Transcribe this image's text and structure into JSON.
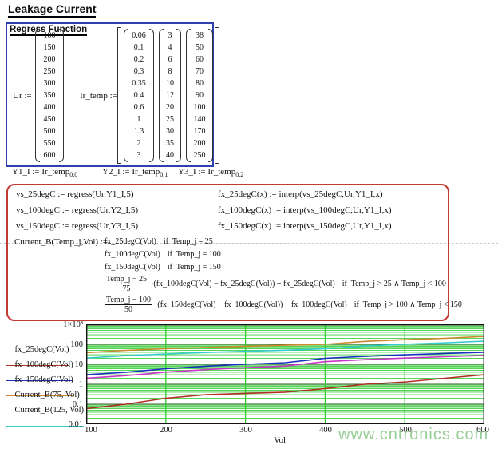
{
  "title": "Leakage Current",
  "regress_box": {
    "title": "Regress Function",
    "ur": {
      "label": "Ur :=",
      "values": [
        "100",
        "150",
        "200",
        "250",
        "300",
        "350",
        "400",
        "450",
        "500",
        "550",
        "600"
      ]
    },
    "ir": {
      "label": "Ir_temp :=",
      "columns": [
        [
          "0.06",
          "0.1",
          "0.2",
          "0.3",
          "0.35",
          "0.4",
          "0.6",
          "1",
          "1.3",
          "2",
          "3"
        ],
        [
          "3",
          "4",
          "6",
          "8",
          "10",
          "12",
          "20",
          "25",
          "30",
          "35",
          "40"
        ],
        [
          "38",
          "50",
          "60",
          "70",
          "80",
          "90",
          "100",
          "140",
          "170",
          "200",
          "250"
        ]
      ]
    }
  },
  "column_assignments": [
    {
      "text": "Y1_I := Ir_temp",
      "subscript": "0,0"
    },
    {
      "text": "Y2_I := Ir_temp",
      "subscript": "0,1"
    },
    {
      "text": "Y3_I := Ir_temp",
      "subscript": "0,2"
    }
  ],
  "formula_box": {
    "regress": [
      "vs_25degC := regress(Ur,Y1_I,5)",
      "vs_100degC := regress(Ur,Y2_I,5)",
      "vs_150degC := regress(Ur,Y3_I,5)"
    ],
    "interp": [
      "fx_25degC(x) := interp(vs_25degC,Ur,Y1_I,x)",
      "fx_100degC(x) := interp(vs_100degC,Ur,Y1_I,x)",
      "fx_150degC(x) := interp(vs_150degC,Ur,Y1_I,x)"
    ],
    "current_b": {
      "lhs": "Current_B(Temp_j,Vol) :=",
      "cases": [
        {
          "expr": "fx_25degC(Vol)",
          "cond": "if  Temp_j = 25"
        },
        {
          "expr": "fx_100degC(Vol)",
          "cond": "if  Temp_j = 100"
        },
        {
          "expr": "fx_150degC(Vol)",
          "cond": "if  Temp_j = 150"
        },
        {
          "frac_num": "Temp_j − 25",
          "frac_den": "75",
          "expr": "·(fx_100degC(Vol) − fx_25degC(Vol)) + fx_25degC(Vol)",
          "cond": "if  Temp_j > 25 ∧ Temp_j < 100"
        },
        {
          "frac_num": "Temp_j − 100",
          "frac_den": "50",
          "expr": "·(fx_150degC(Vol) − fx_100degC(Vol)) + fx_100degC(Vol)",
          "cond": "if  Temp_j > 100 ∧ Temp_j < 150"
        }
      ]
    }
  },
  "chart_data": {
    "type": "line",
    "title": "",
    "xlabel": "Vol",
    "ylabel": "",
    "xlim": [
      100,
      600
    ],
    "ylim_log": [
      0.01,
      1000
    ],
    "x_ticks": [
      "100",
      "200",
      "300",
      "400",
      "500",
      "600"
    ],
    "y_ticks": [
      "1×10³",
      "100",
      "10",
      "1",
      "0.1",
      "0.01"
    ],
    "grid": true,
    "legend_position": "left",
    "x": [
      100,
      150,
      200,
      250,
      300,
      350,
      400,
      450,
      500,
      550,
      600
    ],
    "series": [
      {
        "name": "fx_25degC(Vol)",
        "color": "#b03024",
        "values": [
          0.06,
          0.1,
          0.2,
          0.3,
          0.35,
          0.4,
          0.6,
          1,
          1.3,
          2,
          3
        ]
      },
      {
        "name": "fx_100degC(Vol)",
        "color": "#1b2fc0",
        "values": [
          3,
          4,
          6,
          8,
          10,
          12,
          20,
          25,
          30,
          35,
          40
        ]
      },
      {
        "name": "fx_150degC(Vol)",
        "color": "#cc8a2e",
        "values": [
          38,
          50,
          60,
          70,
          80,
          90,
          100,
          140,
          170,
          200,
          250
        ]
      },
      {
        "name": "Current_B(75, Vol)",
        "color": "#c837c8",
        "values": [
          2.02,
          2.7,
          4.07,
          5.43,
          6.78,
          8.13,
          13.53,
          17,
          20.43,
          24,
          27.67
        ]
      },
      {
        "name": "Current_B(125, Vol)",
        "color": "#35cbcb",
        "values": [
          20.5,
          27,
          33,
          39,
          45,
          51,
          60,
          82.5,
          100,
          117.5,
          145
        ]
      }
    ],
    "grid_colors": {
      "minor": "#3ecf3e",
      "major": "#2a5f2a",
      "vertical": "#2ecc2e"
    }
  },
  "watermark": "www.cntronics.com",
  "colors": {
    "regress_box_border": "#2f3fae",
    "formula_box_border": "#c23b33"
  }
}
